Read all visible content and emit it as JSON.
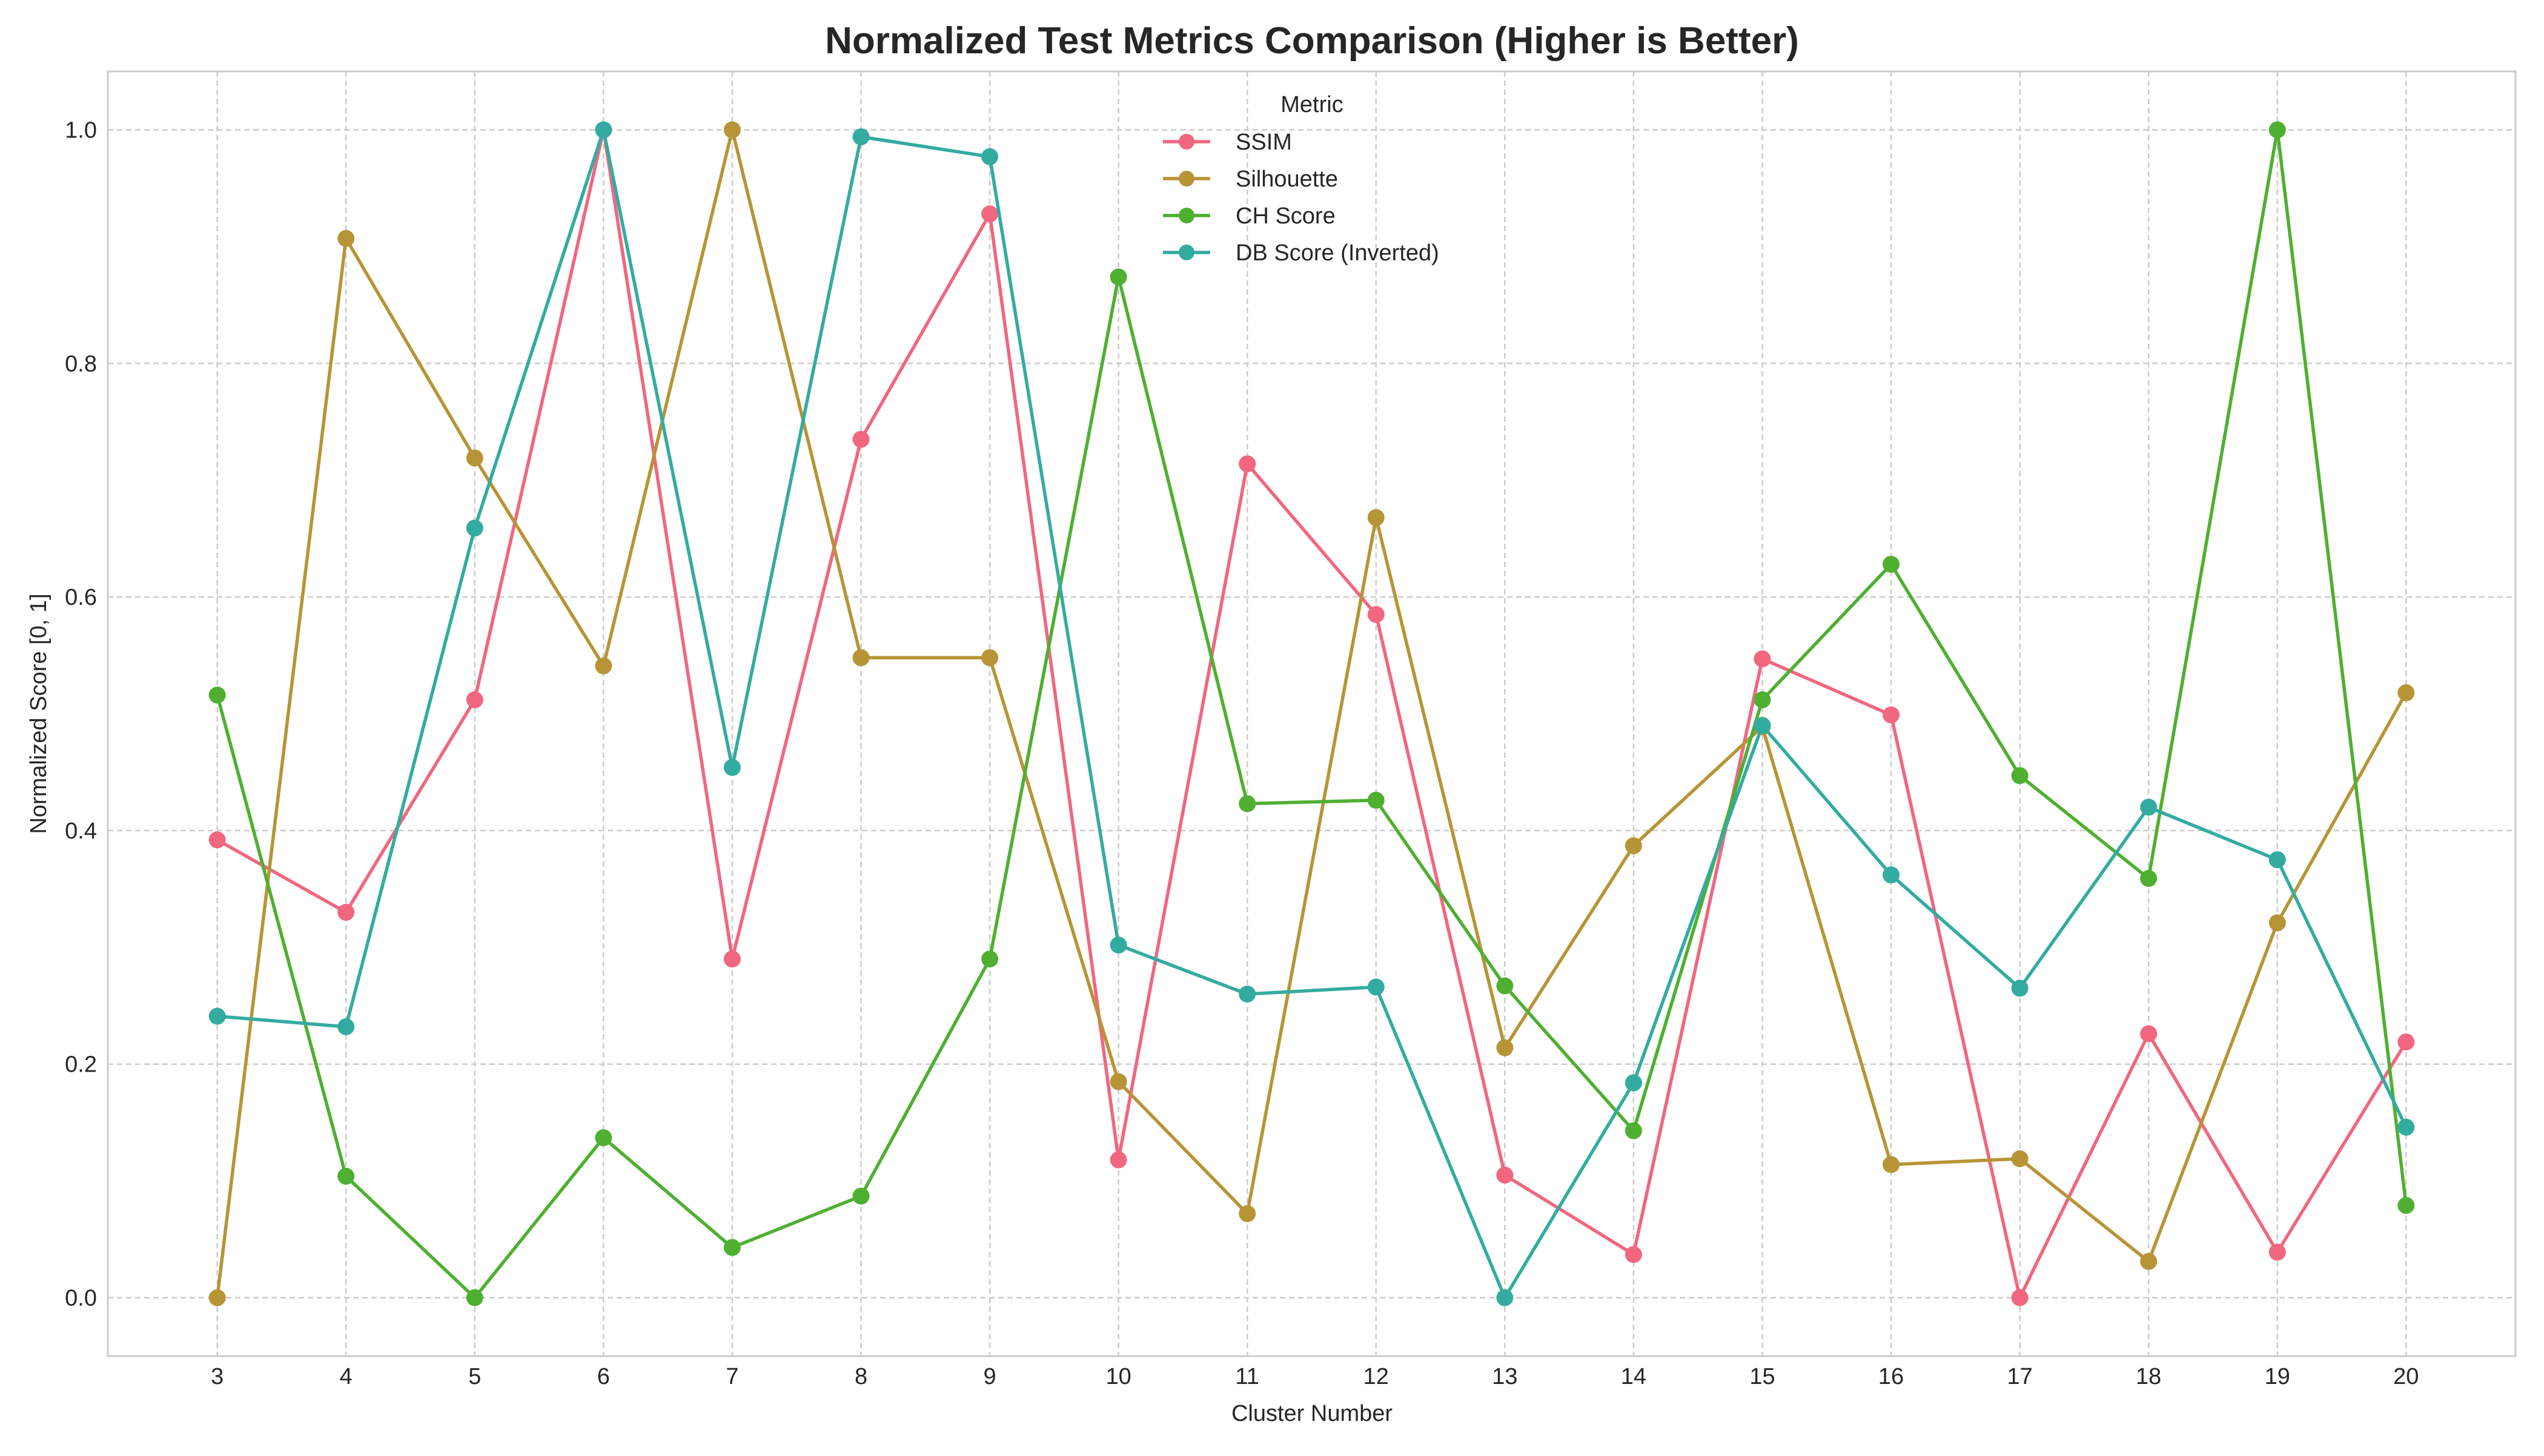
{
  "chart_data": {
    "type": "line",
    "title": "Normalized Test Metrics Comparison (Higher is Better)",
    "xlabel": "Cluster Number",
    "ylabel": "Normalized Score [0, 1]",
    "x": [
      3,
      4,
      5,
      6,
      7,
      8,
      9,
      10,
      11,
      12,
      13,
      14,
      15,
      16,
      17,
      18,
      19,
      20
    ],
    "xlim": [
      2.15,
      20.85
    ],
    "ylim": [
      -0.05,
      1.05
    ],
    "yticks": [
      "0.0",
      "0.2",
      "0.4",
      "0.6",
      "0.8",
      "1.0"
    ],
    "grid": true,
    "legend": {
      "title": "Metric",
      "placement": "top-center"
    },
    "series": [
      {
        "name": "SSIM",
        "color": "#f0677f",
        "values": [
          0.392,
          0.33,
          0.512,
          1.0,
          0.29,
          0.735,
          0.928,
          0.118,
          0.714,
          0.585,
          0.105,
          0.037,
          0.547,
          0.499,
          0.0,
          0.226,
          0.039,
          0.219
        ]
      },
      {
        "name": "Silhouette",
        "color": "#b79436",
        "values": [
          0.0,
          0.907,
          0.719,
          0.541,
          1.0,
          0.548,
          0.548,
          0.185,
          0.072,
          0.668,
          0.214,
          0.387,
          0.489,
          0.114,
          0.119,
          0.031,
          0.321,
          0.518
        ]
      },
      {
        "name": "CH Score",
        "color": "#4faf31",
        "values": [
          0.516,
          0.104,
          0.0,
          0.137,
          0.043,
          0.087,
          0.29,
          0.874,
          0.423,
          0.426,
          0.267,
          0.143,
          0.512,
          0.628,
          0.447,
          0.359,
          1.0,
          0.079
        ]
      },
      {
        "name": "DB Score (Inverted)",
        "color": "#34aba0",
        "values": [
          0.241,
          0.232,
          0.659,
          1.0,
          0.454,
          0.994,
          0.977,
          0.302,
          0.26,
          0.266,
          0.0,
          0.184,
          0.49,
          0.362,
          0.265,
          0.42,
          0.375,
          0.146
        ]
      }
    ]
  }
}
